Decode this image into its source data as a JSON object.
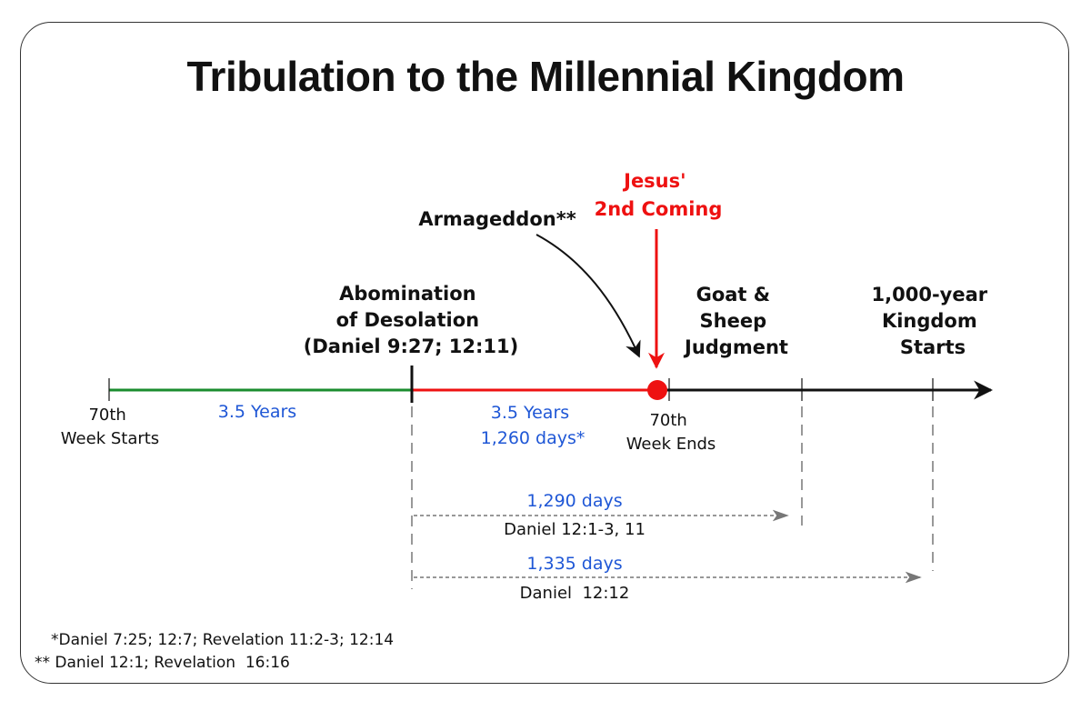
{
  "title": "Tribulation to the Millennial Kingdom",
  "events": {
    "armageddon": "Armageddon**",
    "second_coming": [
      "Jesus'",
      "2nd Coming"
    ],
    "abomination": [
      "Abomination",
      "of Desolation",
      "(Daniel 9:27; 12:11)"
    ],
    "goat_sheep": [
      "Goat &",
      "Sheep",
      "Judgment"
    ],
    "kingdom": [
      "1,000-year",
      "Kingdom",
      "Starts"
    ]
  },
  "timeline": {
    "week_start": [
      "70th",
      "Week Starts"
    ],
    "week_end": [
      "70th",
      "Week Ends"
    ],
    "first_half": "3.5 Years",
    "second_half": [
      "3.5 Years",
      "1,260 days*"
    ]
  },
  "periods": [
    {
      "days": "1,290 days",
      "reference": "Daniel 12:1-3, 11"
    },
    {
      "days": "1,335 days",
      "reference": "Daniel  12:12"
    }
  ],
  "footnotes": [
    "*Daniel 7:25; 12:7; Revelation 11:2-3; 12:14",
    "** Daniel 12:1; Revelation  16:16"
  ],
  "colors": {
    "first_half": "#1a8c2e",
    "second_half": "#ee1111",
    "after": "#111111",
    "blue_text": "#1f57d6",
    "dashed": "#777777"
  }
}
